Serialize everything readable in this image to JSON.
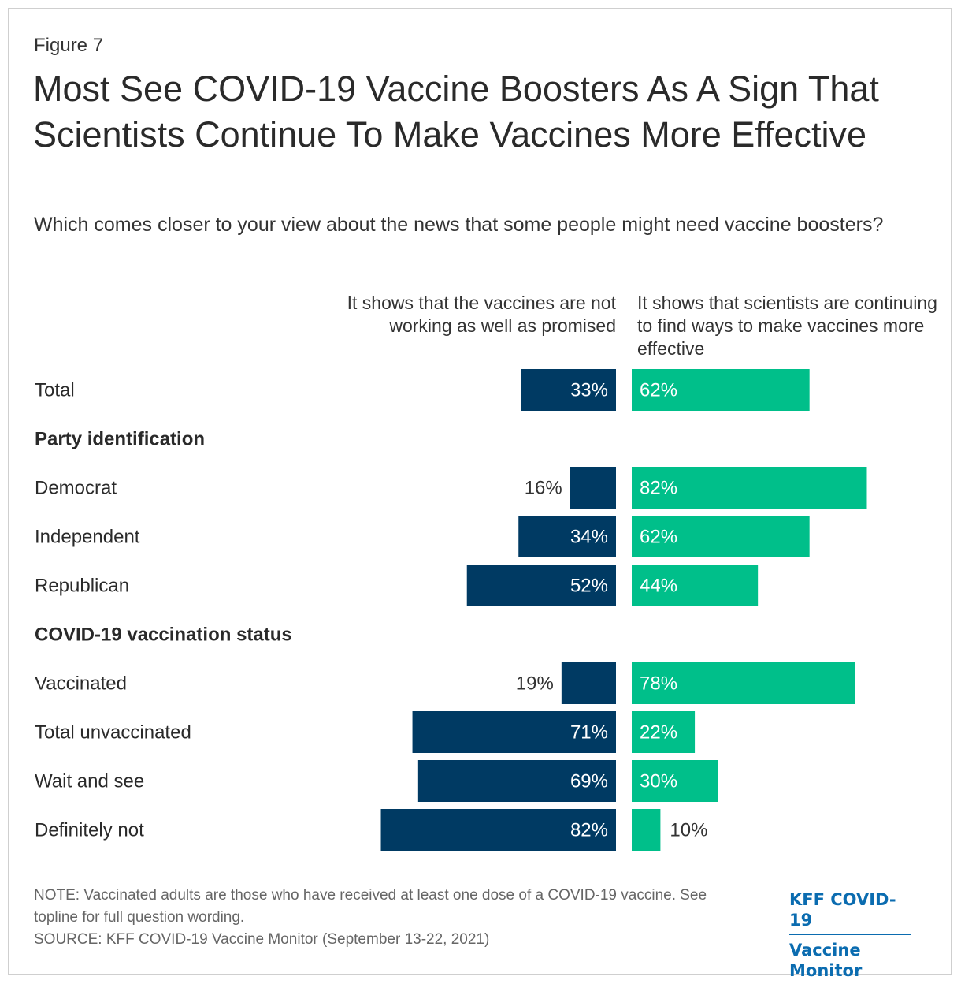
{
  "figure_label": "Figure 7",
  "title": "Most See COVID-19 Vaccine Boosters As A Sign That Scientists Continue To Make Vaccines More Effective",
  "subtitle": "Which comes closer to your view about the news that some people might need vaccine boosters?",
  "note": "NOTE: Vaccinated adults are those who have received at least one dose of a COVID-19 vaccine. See topline for full question wording.",
  "source": "SOURCE: KFF COVID-19 Vaccine Monitor (September 13-22, 2021)",
  "logo": {
    "line1": "KFF COVID-19",
    "line2": "Vaccine Monitor"
  },
  "colors": {
    "left_bar": "#003a63",
    "right_bar": "#00bf8a"
  },
  "chart_data": {
    "type": "bar",
    "orientation": "horizontal-diverging",
    "series": [
      {
        "name": "It shows that the vaccines are not working as well as promised",
        "side": "left"
      },
      {
        "name": "It shows that scientists are continuing to find ways to make vaccines more effective",
        "side": "right"
      }
    ],
    "rows": [
      {
        "kind": "category",
        "label": "Total",
        "left": 33,
        "right": 62
      },
      {
        "kind": "group",
        "label": "Party identification"
      },
      {
        "kind": "category",
        "label": "Democrat",
        "left": 16,
        "right": 82
      },
      {
        "kind": "category",
        "label": "Independent",
        "left": 34,
        "right": 62
      },
      {
        "kind": "category",
        "label": "Republican",
        "left": 52,
        "right": 44
      },
      {
        "kind": "group",
        "label": "COVID-19 vaccination status"
      },
      {
        "kind": "category",
        "label": "Vaccinated",
        "left": 19,
        "right": 78
      },
      {
        "kind": "category",
        "label": "Total unvaccinated",
        "left": 71,
        "right": 22
      },
      {
        "kind": "category",
        "label": "Wait and see",
        "left": 69,
        "right": 30
      },
      {
        "kind": "category",
        "label": "Definitely not",
        "left": 82,
        "right": 10
      }
    ],
    "value_suffix": "%",
    "xlim": [
      0,
      100
    ]
  }
}
